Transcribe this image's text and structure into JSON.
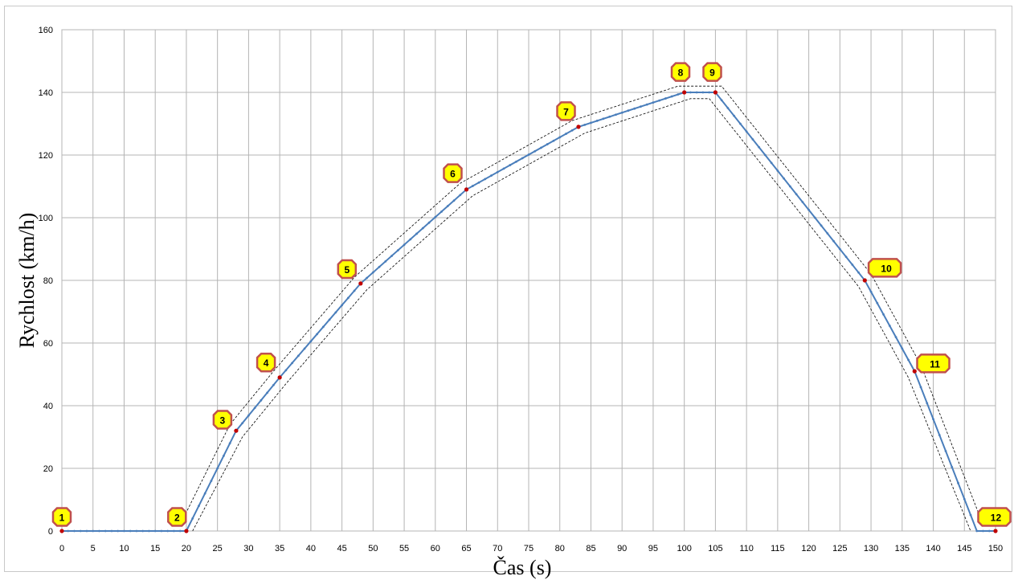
{
  "chart_data": {
    "type": "line",
    "title": "",
    "xlabel": "Čas (s)",
    "ylabel": "Rychlost (km/h)",
    "xlim": [
      0,
      150
    ],
    "ylim": [
      0,
      160
    ],
    "x_ticks": [
      0,
      5,
      10,
      15,
      20,
      25,
      30,
      35,
      40,
      45,
      50,
      55,
      60,
      65,
      70,
      75,
      80,
      85,
      90,
      95,
      100,
      105,
      110,
      115,
      120,
      125,
      130,
      135,
      140,
      145,
      150
    ],
    "y_ticks": [
      0,
      20,
      40,
      60,
      80,
      100,
      120,
      140,
      160
    ],
    "grid": true,
    "legend": "none",
    "series": [
      {
        "color": "#4a7ebb",
        "x": [
          0,
          20,
          28,
          35,
          48,
          65,
          83,
          100,
          105,
          129,
          137,
          147,
          150
        ],
        "y": [
          0,
          0,
          32,
          49,
          79,
          109,
          129,
          140,
          140,
          80,
          51,
          0,
          0
        ]
      }
    ],
    "tolerance_band": {
      "offset_kmh": 2,
      "offset_s": 1,
      "style": "dashed"
    },
    "key_points": [
      {
        "label": "1",
        "x": 0,
        "y": 0
      },
      {
        "label": "2",
        "x": 20,
        "y": 0
      },
      {
        "label": "3",
        "x": 28,
        "y": 32
      },
      {
        "label": "4",
        "x": 35,
        "y": 49
      },
      {
        "label": "5",
        "x": 48,
        "y": 79
      },
      {
        "label": "6",
        "x": 65,
        "y": 109
      },
      {
        "label": "7",
        "x": 83,
        "y": 129
      },
      {
        "label": "8",
        "x": 100,
        "y": 140
      },
      {
        "label": "9",
        "x": 105,
        "y": 140
      },
      {
        "label": "10",
        "x": 129,
        "y": 80
      },
      {
        "label": "11",
        "x": 137,
        "y": 51
      },
      {
        "label": "12",
        "x": 150,
        "y": 0
      }
    ],
    "marker_fill": "#ffff00",
    "marker_stroke": "#c0504d",
    "point_color": "#c00000"
  }
}
